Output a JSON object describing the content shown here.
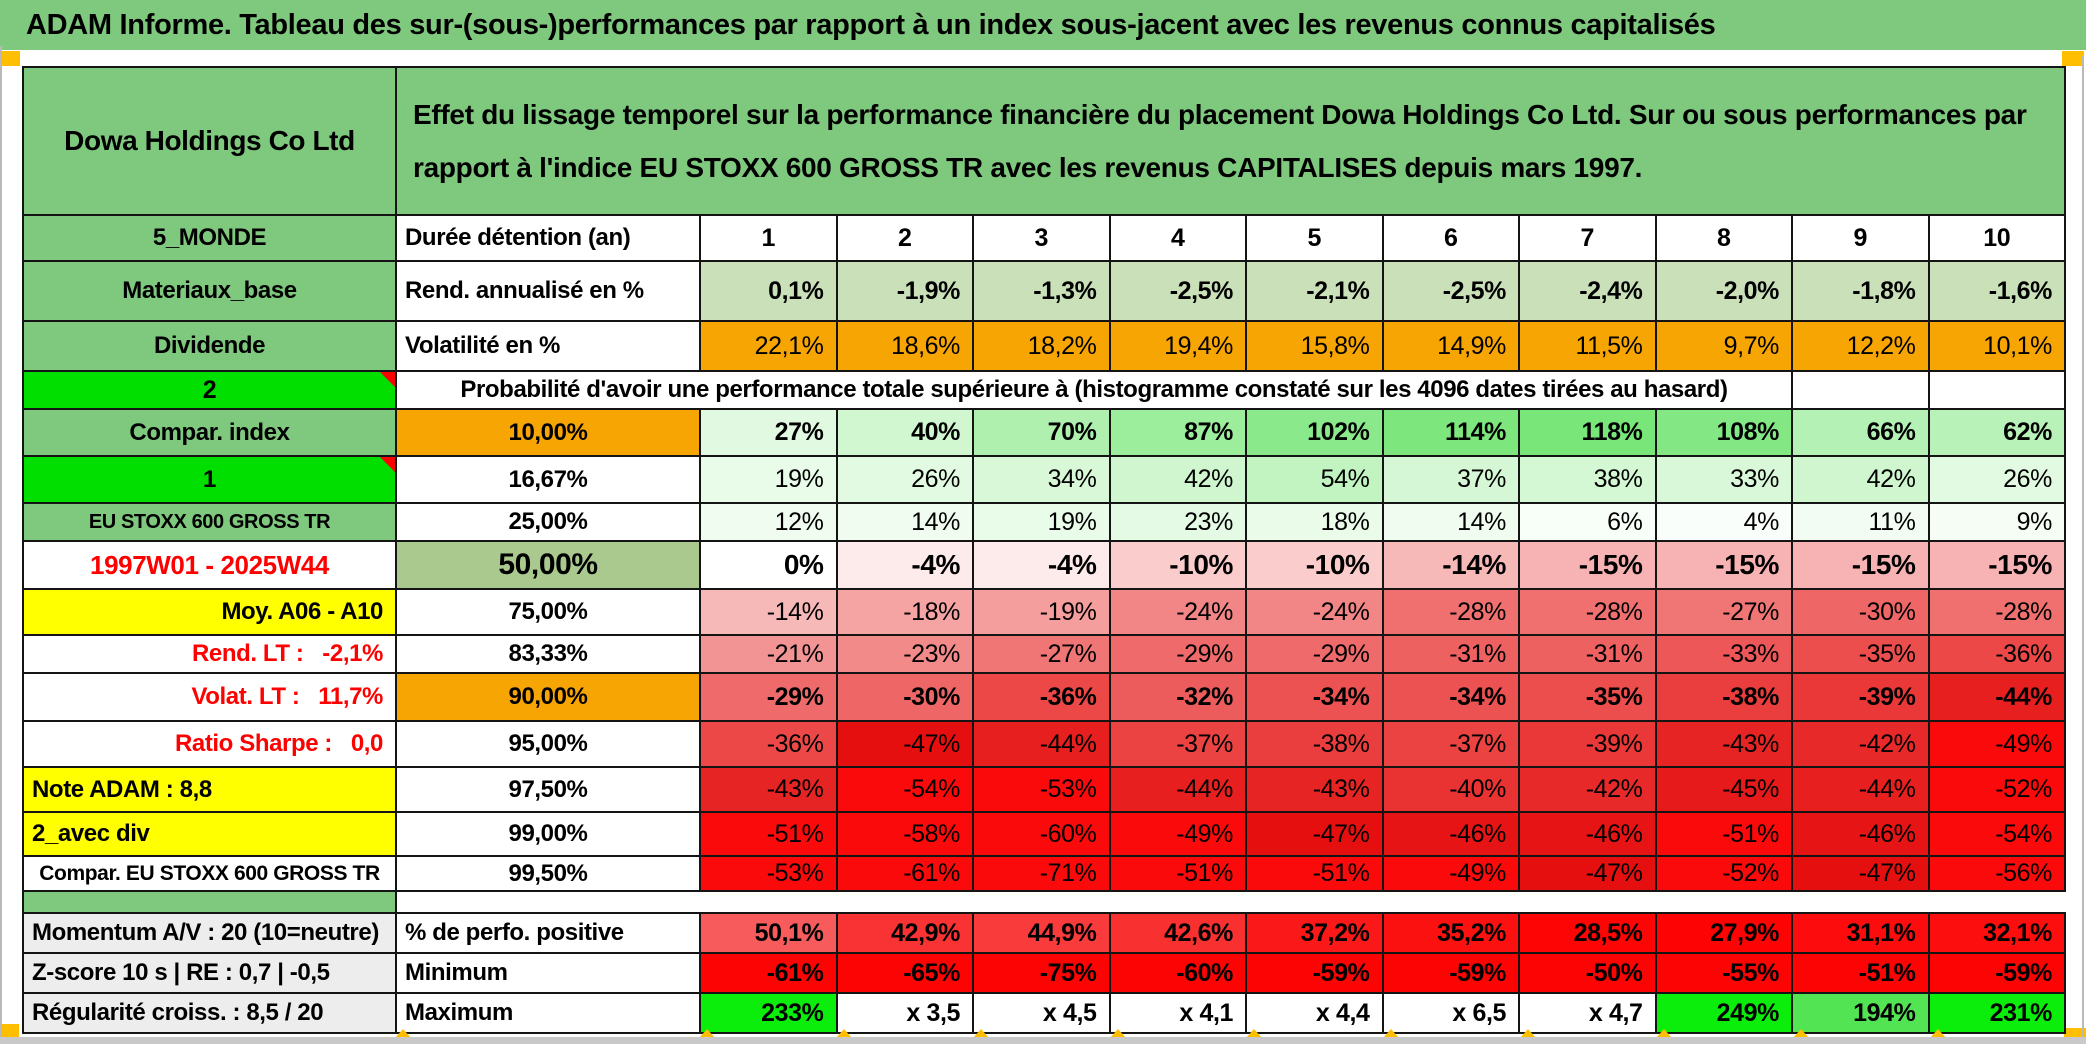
{
  "title": "ADAM Informe. Tableau des sur-(sous-)performances par rapport à un index sous-jacent avec les revenus connus capitalisés",
  "accents": {
    "header_green": "#7FC97F",
    "bright_green": "#00DF00",
    "orange": "#F7A503",
    "corner_square_orange": "#FFBE00",
    "yellow": "#FFFF00",
    "sage_green": "#A9C98F",
    "gray_label": "#EDEDED",
    "marker_red": "#FF0000",
    "red_text": "#FF0000"
  },
  "table": {
    "instrument": "Dowa Holdings Co Ltd",
    "description": "Effet du lissage temporel sur la performance financière du placement Dowa Holdings Co Ltd. Sur ou sous performances par rapport à l'indice EU STOXX 600 GROSS TR avec les revenus CAPITALISES depuis mars 1997.",
    "proba_banner": "Probabilité d'avoir une performance totale supérieure à (histogramme constaté sur les 4096 dates tirées au hasard)",
    "rows": [
      {
        "id": "header"
      },
      {
        "id": "duree",
        "l1": "5_MONDE",
        "l1_bg": "#7FC97F",
        "l2": "Durée détention (an)",
        "l2_bg": "#FFFFFF",
        "l2_align": "l",
        "cells": [
          "1",
          "2",
          "3",
          "4",
          "5",
          "6",
          "7",
          "8",
          "9",
          "10"
        ],
        "cells_align": "c",
        "bold": true,
        "bgs": [
          "#FFFFFF",
          "#FFFFFF",
          "#FFFFFF",
          "#FFFFFF",
          "#FFFFFF",
          "#FFFFFF",
          "#FFFFFF",
          "#FFFFFF",
          "#FFFFFF",
          "#FFFFFF"
        ]
      },
      {
        "id": "rend",
        "l1": "Materiaux_base",
        "l1_bg": "#7FC97F",
        "l2": "Rend. annualisé en %",
        "l2_bg": "#FFFFFF",
        "l2_align": "l",
        "cells": [
          "0,1%",
          "-1,9%",
          "-1,3%",
          "-2,5%",
          "-2,1%",
          "-2,5%",
          "-2,4%",
          "-2,0%",
          "-1,8%",
          "-1,6%"
        ],
        "bold": true,
        "bgs": [
          "#C9E0B8",
          "#C9E0B8",
          "#C9E0B8",
          "#C9E0B8",
          "#C9E0B8",
          "#C9E0B8",
          "#C9E0B8",
          "#C9E0B8",
          "#C9E0B8",
          "#C9E0B8"
        ]
      },
      {
        "id": "volat",
        "l1": "Dividende",
        "l1_bg": "#7FC97F",
        "l2": "Volatilité en %",
        "l2_bg": "#FFFFFF",
        "l2_align": "l",
        "cells": [
          "22,1%",
          "18,6%",
          "18,2%",
          "19,4%",
          "15,8%",
          "14,9%",
          "11,5%",
          "9,7%",
          "12,2%",
          "10,1%"
        ],
        "bold": false,
        "bgs": [
          "#F7A503",
          "#F7A503",
          "#F7A503",
          "#F7A503",
          "#F7A503",
          "#F7A503",
          "#F7A503",
          "#F7A503",
          "#F7A503",
          "#F7A503"
        ]
      },
      {
        "id": "proba",
        "l1": "2",
        "l1_bg": "#00DF00",
        "l1_marker": true
      },
      {
        "id": "p10",
        "l1": "Compar. index",
        "l1_bg": "#7FC97F",
        "l2": "10,00%",
        "l2_bg": "#F7A503",
        "cells": [
          "27%",
          "40%",
          "70%",
          "87%",
          "102%",
          "114%",
          "118%",
          "108%",
          "66%",
          "62%"
        ],
        "bold": true,
        "bgs": [
          "#E0F9E0",
          "#D1F7D1",
          "#AFF0AF",
          "#9CED9C",
          "#8AE98A",
          "#7DE77D",
          "#78E678",
          "#83E883",
          "#B4F1B4",
          "#B8F2B8"
        ]
      },
      {
        "id": "p1667",
        "l1": "1",
        "l1_bg": "#00DF00",
        "l1_marker": true,
        "l2": "16,67%",
        "l2_bg": "#FFFFFF",
        "cells": [
          "19%",
          "26%",
          "34%",
          "42%",
          "54%",
          "37%",
          "38%",
          "33%",
          "42%",
          "26%"
        ],
        "bold": false,
        "bgs": [
          "#E9FBE9",
          "#E1FAE1",
          "#D8F8D8",
          "#CFF6CF",
          "#C1F4C1",
          "#D5F7D5",
          "#D4F7D4",
          "#D9F8D9",
          "#CFF6CF",
          "#E1FAE1"
        ]
      },
      {
        "id": "p25",
        "l1": "EU STOXX 600 GROSS TR",
        "l1_bg": "#7FC97F",
        "l1_size": "20px",
        "l2": "25,00%",
        "l2_bg": "#FFFFFF",
        "cells": [
          "12%",
          "14%",
          "19%",
          "23%",
          "18%",
          "14%",
          "6%",
          "4%",
          "11%",
          "9%"
        ],
        "bold": false,
        "bgs": [
          "#F1FCF1",
          "#F0FCF0",
          "#E9FBE9",
          "#E5FAE5",
          "#EAFBEA",
          "#F0FCF0",
          "#F8FEF8",
          "#FAFEFA",
          "#F2FCF2",
          "#F5FDF5"
        ]
      },
      {
        "id": "p50",
        "l1": "1997W01 - 2025W44",
        "l1_bg": "#FFFFFF",
        "l1_fg": "#FF0000",
        "l1_size": "26px",
        "l2": "50,00%",
        "l2_bg": "#A9C98F",
        "l2_size": "30px",
        "cells": [
          "0%",
          "-4%",
          "-4%",
          "-10%",
          "-10%",
          "-14%",
          "-15%",
          "-15%",
          "-15%",
          "-15%"
        ],
        "bold": true,
        "cells_size": "28px",
        "bgs": [
          "#FFFFFF",
          "#FDEBEB",
          "#FDEBEB",
          "#FACCCC",
          "#FACCCC",
          "#F7B8B8",
          "#F7B3B3",
          "#F7B3B3",
          "#F7B3B3",
          "#F7B3B3"
        ]
      },
      {
        "id": "p75",
        "l1": "Moy. A06 - A10",
        "l1_bg": "#FFFF00",
        "l1_align": "r",
        "l2": "75,00%",
        "l2_bg": "#FFFFFF",
        "cells": [
          "-14%",
          "-18%",
          "-19%",
          "-24%",
          "-24%",
          "-28%",
          "-28%",
          "-27%",
          "-30%",
          "-28%"
        ],
        "bold": false,
        "bgs": [
          "#F7B8B8",
          "#F5A3A3",
          "#F59E9E",
          "#F28585",
          "#F28585",
          "#F07070",
          "#F07070",
          "#F07575",
          "#EF6666",
          "#F07070"
        ]
      },
      {
        "id": "p8333",
        "l1": "Rend. LT :   -2,1%",
        "l1_bg": "#FFFFFF",
        "l1_fg": "#FF0000",
        "l1_align": "r",
        "l2": "83,33%",
        "l2_bg": "#FFFFFF",
        "cells": [
          "-21%",
          "-23%",
          "-27%",
          "-29%",
          "-29%",
          "-31%",
          "-31%",
          "-33%",
          "-35%",
          "-36%"
        ],
        "bold": false,
        "bgs": [
          "#F39494",
          "#F38A8A",
          "#F07575",
          "#EF6B6B",
          "#EF6B6B",
          "#EE6161",
          "#EE6161",
          "#ED5757",
          "#EC4D4D",
          "#EC4848"
        ]
      },
      {
        "id": "p90",
        "l1": "Volat. LT :   11,7%",
        "l1_bg": "#FFFFFF",
        "l1_fg": "#FF0000",
        "l1_align": "r",
        "l2": "90,00%",
        "l2_bg": "#F7A503",
        "cells": [
          "-29%",
          "-30%",
          "-36%",
          "-32%",
          "-34%",
          "-34%",
          "-35%",
          "-38%",
          "-39%",
          "-44%"
        ],
        "bold": true,
        "bgs": [
          "#EF6B6B",
          "#EF6666",
          "#EC4848",
          "#ED5C5C",
          "#EC5252",
          "#EC5252",
          "#EC4D4D",
          "#EA3D3D",
          "#EA3838",
          "#E71F1F"
        ]
      },
      {
        "id": "p95",
        "l1": "Ratio Sharpe :   0,0",
        "l1_bg": "#FFFFFF",
        "l1_fg": "#FF0000",
        "l1_align": "r",
        "l2": "95,00%",
        "l2_bg": "#FFFFFF",
        "cells": [
          "-36%",
          "-47%",
          "-44%",
          "-37%",
          "-38%",
          "-37%",
          "-39%",
          "-43%",
          "-42%",
          "-49%"
        ],
        "bold": false,
        "bgs": [
          "#EC4848",
          "#E50F0F",
          "#E71F1F",
          "#EB4242",
          "#EA3D3D",
          "#EB4242",
          "#EA3838",
          "#E72424",
          "#E82929",
          "#FA0A0A"
        ]
      },
      {
        "id": "p975",
        "l1": "Note ADAM : 8,8",
        "l1_bg": "#FFFF00",
        "l1_align": "l",
        "l2": "97,50%",
        "l2_bg": "#FFFFFF",
        "cells": [
          "-43%",
          "-54%",
          "-53%",
          "-44%",
          "-43%",
          "-40%",
          "-42%",
          "-45%",
          "-44%",
          "-52%"
        ],
        "bold": false,
        "bgs": [
          "#E72424",
          "#FA0A0A",
          "#FA0A0A",
          "#E71F1F",
          "#E72424",
          "#E93333",
          "#E82929",
          "#E61A1A",
          "#E71F1F",
          "#FA0A0A"
        ]
      },
      {
        "id": "p99",
        "l1": "2_avec div",
        "l1_bg": "#FFFF00",
        "l1_align": "l",
        "l2": "99,00%",
        "l2_bg": "#FFFFFF",
        "cells": [
          "-51%",
          "-58%",
          "-60%",
          "-49%",
          "-47%",
          "-46%",
          "-46%",
          "-51%",
          "-46%",
          "-54%"
        ],
        "bold": false,
        "bgs": [
          "#FA0A0A",
          "#FA0A0A",
          "#FA0A0A",
          "#FA0A0A",
          "#E50F0F",
          "#E61414",
          "#E61414",
          "#FA0A0A",
          "#E61414",
          "#FA0A0A"
        ]
      },
      {
        "id": "p995",
        "l1": "Compar. EU STOXX 600 GROSS TR",
        "l1_bg": "#FFFFFF",
        "l1_size": "21px",
        "l2": "99,50%",
        "l2_bg": "#FFFFFF",
        "cells": [
          "-53%",
          "-61%",
          "-71%",
          "-51%",
          "-51%",
          "-49%",
          "-47%",
          "-52%",
          "-47%",
          "-56%"
        ],
        "bold": false,
        "bgs": [
          "#FA0A0A",
          "#FA0A0A",
          "#FA0A0A",
          "#FA0A0A",
          "#FA0A0A",
          "#FA0A0A",
          "#E50F0F",
          "#FA0A0A",
          "#E50F0F",
          "#FA0A0A"
        ]
      },
      {
        "id": "gap",
        "l1": "",
        "l1_bg": "#7FC97F"
      },
      {
        "id": "perfo",
        "l1": "Momentum A/V : 20 (10=neutre)",
        "l1_bg": "#EDEDED",
        "l1_align": "l",
        "l2": "% de perfo. positive",
        "l2_bg": "#FFFFFF",
        "l2_align": "l",
        "cells": [
          "50,1%",
          "42,9%",
          "44,9%",
          "42,6%",
          "37,2%",
          "35,2%",
          "28,5%",
          "27,9%",
          "31,1%",
          "32,1%"
        ],
        "bold": true,
        "bgs": [
          "#F75B5B",
          "#F93333",
          "#F93B3B",
          "#F93030",
          "#FB1818",
          "#FC1111",
          "#FD0505",
          "#FD0303",
          "#FC0C0C",
          "#FC0E0E"
        ]
      },
      {
        "id": "min",
        "l1": "Z-score 10 s | RE : 0,7 | -0,5",
        "l1_bg": "#EDEDED",
        "l1_align": "l",
        "l2": "Minimum",
        "l2_bg": "#FFFFFF",
        "l2_align": "l",
        "cells": [
          "-61%",
          "-65%",
          "-75%",
          "-60%",
          "-59%",
          "-59%",
          "-50%",
          "-55%",
          "-51%",
          "-59%"
        ],
        "bold": true,
        "bgs": [
          "#FC0404",
          "#FC0404",
          "#FC0404",
          "#FC0404",
          "#FC0404",
          "#FC0404",
          "#FC0404",
          "#FC0404",
          "#FC0404",
          "#FC0404"
        ]
      },
      {
        "id": "max",
        "l1": "Régularité croiss. : 8,5 / 20",
        "l1_bg": "#EDEDED",
        "l1_align": "l",
        "l2": "Maximum",
        "l2_bg": "#FFFFFF",
        "l2_align": "l",
        "cells": [
          "233%",
          "x 3,5",
          "x 4,5",
          "x 4,1",
          "x 4,4",
          "x 6,5",
          "x 4,7",
          "249%",
          "194%",
          "231%"
        ],
        "bold": true,
        "bgs": [
          "#0BEE0B",
          "#FFFFFF",
          "#FFFFFF",
          "#FFFFFF",
          "#FFFFFF",
          "#FFFFFF",
          "#FFFFFF",
          "#0BEE0B",
          "#52E452",
          "#0BEE0B"
        ]
      }
    ]
  }
}
